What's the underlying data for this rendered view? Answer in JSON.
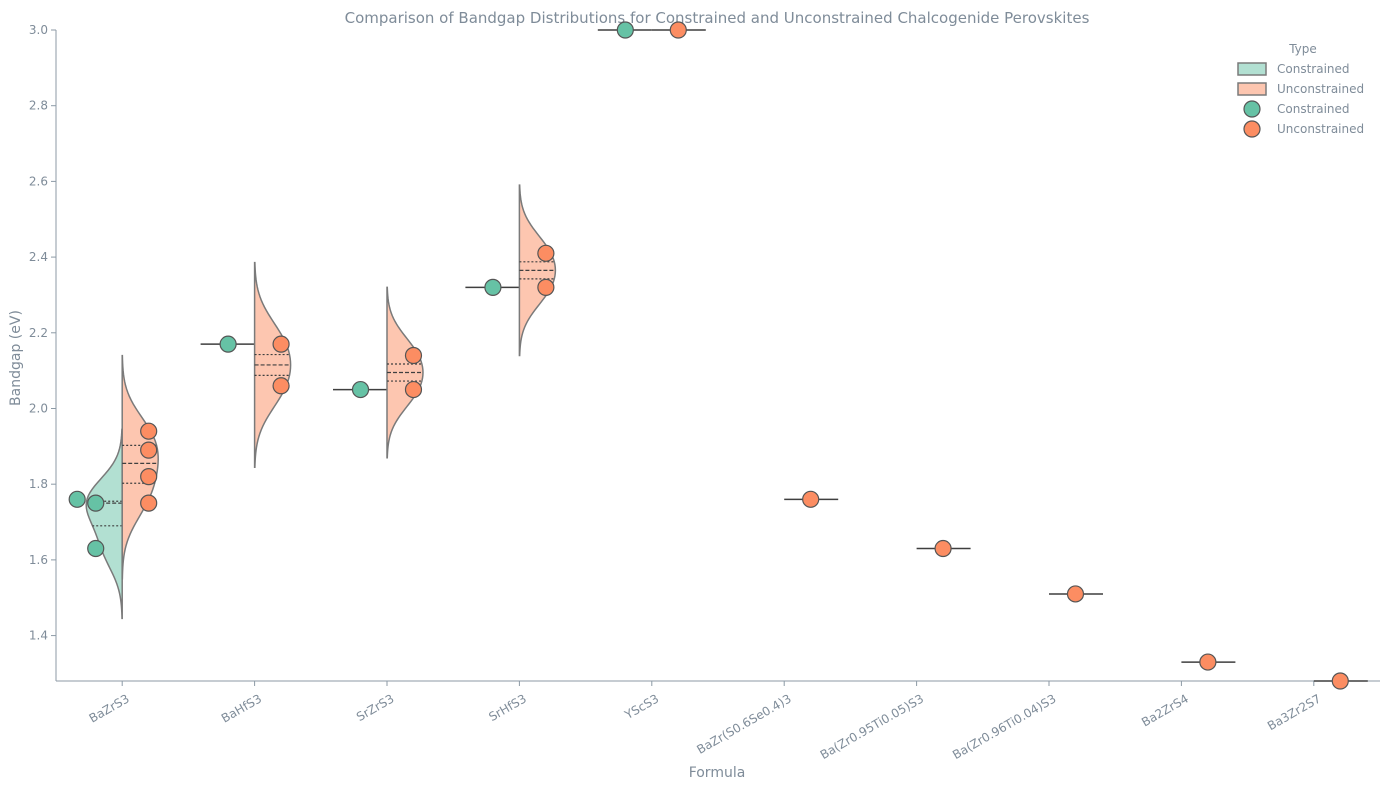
{
  "colors": {
    "constrained": "#66c2a5",
    "unconstrained": "#fc8d62",
    "axis": "#8c9aa6",
    "text": "#7f8c99",
    "line": "#3f3f3f"
  },
  "chart_data": {
    "type": "violin",
    "title": "Comparison of Bandgap Distributions for Constrained and Unconstrained Chalcogenide Perovskites",
    "xlabel": "Formula",
    "ylabel": "Bandgap (eV)",
    "ylim": [
      1.28,
      3.0
    ],
    "yticks": [
      "1.4",
      "1.6",
      "1.8",
      "2.0",
      "2.2",
      "2.4",
      "2.6",
      "2.8",
      "3.0"
    ],
    "categories": [
      "BaZrS3",
      "BaHfS3",
      "SrZrS3",
      "SrHfS3",
      "YScS3",
      "BaZr(S0.6Se0.4)3",
      "Ba(Zr0.95Ti0.05)S3",
      "Ba(Zr0.96Ti0.04)S3",
      "Ba2ZrS4",
      "Ba3Zr2S7"
    ],
    "legend": {
      "title": "Type",
      "position": "top-right",
      "entries": [
        "Constrained",
        "Unconstrained",
        "Constrained",
        "Unconstrained"
      ]
    },
    "series": [
      {
        "name": "Constrained",
        "points": [
          {
            "category": "BaZrS3",
            "values": [
              1.76,
              1.75,
              1.63
            ]
          },
          {
            "category": "BaHfS3",
            "values": [
              2.17
            ]
          },
          {
            "category": "SrZrS3",
            "values": [
              2.05
            ]
          },
          {
            "category": "SrHfS3",
            "values": [
              2.32
            ]
          },
          {
            "category": "YScS3",
            "values": [
              3.0
            ]
          }
        ]
      },
      {
        "name": "Unconstrained",
        "points": [
          {
            "category": "BaZrS3",
            "values": [
              1.94,
              1.89,
              1.82,
              1.75
            ]
          },
          {
            "category": "BaHfS3",
            "values": [
              2.17,
              2.06
            ]
          },
          {
            "category": "SrZrS3",
            "values": [
              2.14,
              2.05
            ]
          },
          {
            "category": "SrHfS3",
            "values": [
              2.41,
              2.32
            ]
          },
          {
            "category": "YScS3",
            "values": [
              3.0
            ]
          },
          {
            "category": "BaZr(S0.6Se0.4)3",
            "values": [
              1.76
            ]
          },
          {
            "category": "Ba(Zr0.95Ti0.05)S3",
            "values": [
              1.63
            ]
          },
          {
            "category": "Ba(Zr0.96Ti0.04)S3",
            "values": [
              1.51
            ]
          },
          {
            "category": "Ba2ZrS4",
            "values": [
              1.33
            ]
          },
          {
            "category": "Ba3Zr2S7",
            "values": [
              1.28
            ]
          }
        ]
      }
    ]
  }
}
